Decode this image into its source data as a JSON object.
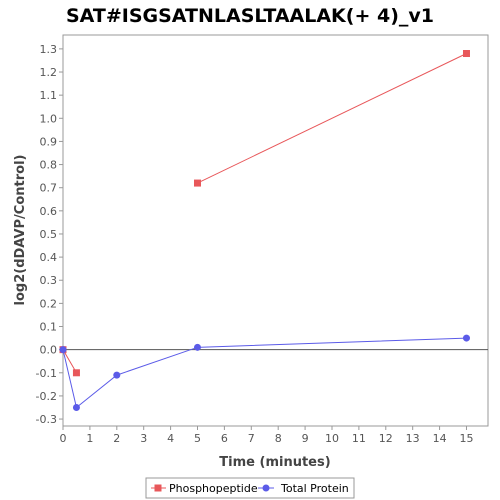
{
  "chart_data": {
    "type": "line",
    "title": "SAT#ISGSATNLASLTAALAK(+ 4)_v1",
    "xlabel": "Time (minutes)",
    "ylabel": "log2(dDAVP/Control)",
    "xlim": [
      0,
      15.8
    ],
    "ylim": [
      -0.33,
      1.36
    ],
    "xticks": [
      0,
      1,
      2,
      3,
      4,
      5,
      6,
      7,
      8,
      9,
      10,
      11,
      12,
      13,
      14,
      15
    ],
    "yticks": [
      -0.3,
      -0.2,
      -0.1,
      0.0,
      0.1,
      0.2,
      0.3,
      0.4,
      0.5,
      0.6,
      0.7,
      0.8,
      0.9,
      1.0,
      1.1,
      1.2,
      1.3
    ],
    "ytick_labels": [
      "-0.3",
      "-0.2",
      "-0.1",
      "0.0",
      "0.1",
      "0.2",
      "0.3",
      "0.4",
      "0.5",
      "0.6",
      "0.7",
      "0.8",
      "0.9",
      "1.0",
      "1.1",
      "1.2",
      "1.3"
    ],
    "zero_line": true,
    "grid": false,
    "legend_position": "bottom",
    "series": [
      {
        "name": "Phosphopeptide",
        "color": "#e8575a",
        "marker": "square",
        "segments": [
          [
            {
              "x": 0,
              "y": 0.0
            },
            {
              "x": 0.5,
              "y": -0.1
            }
          ],
          [
            {
              "x": 5,
              "y": 0.72
            },
            {
              "x": 15,
              "y": 1.28
            }
          ]
        ]
      },
      {
        "name": "Total Protein",
        "color": "#5b5be8",
        "marker": "circle",
        "segments": [
          [
            {
              "x": 0,
              "y": 0.0
            },
            {
              "x": 0.5,
              "y": -0.25
            },
            {
              "x": 2,
              "y": -0.11
            },
            {
              "x": 5,
              "y": 0.01
            },
            {
              "x": 15,
              "y": 0.05
            }
          ]
        ]
      }
    ]
  }
}
